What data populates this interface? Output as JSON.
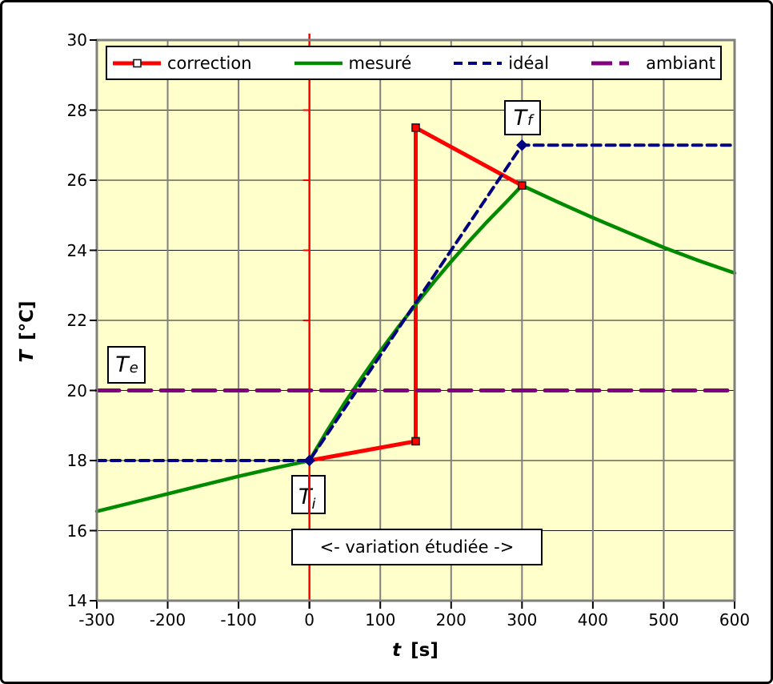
{
  "chart_data": {
    "type": "line",
    "title": "",
    "xlabel_var": "t",
    "xlabel_unit": "[s]",
    "ylabel_var": "T",
    "ylabel_unit": "[°C]",
    "xlim": [
      -300,
      600
    ],
    "ylim": [
      14,
      30
    ],
    "x_ticks": [
      -300,
      -200,
      -100,
      0,
      100,
      200,
      300,
      400,
      500,
      600
    ],
    "y_ticks": [
      14,
      16,
      18,
      20,
      22,
      24,
      26,
      28,
      30
    ],
    "grid": "on",
    "plot_background": "#FFFFCC",
    "h_grid_color": "#1a1a1a",
    "v_grid_color": "#808080",
    "plot_border_color": "#7F7F7F",
    "axis_line": {
      "at_x": 0,
      "color": "#FF0000"
    },
    "legend_position": "top",
    "series": [
      {
        "name": "correction",
        "color": "#FF0000",
        "dash": "",
        "width": 5,
        "marker": "square",
        "marker_fill": "#FF0000",
        "marker_stroke": "#1a1a1a",
        "legend_marker_fill": "#FFFFFF",
        "points": [
          [
            0,
            18.0
          ],
          [
            150,
            18.55
          ],
          [
            150,
            27.5
          ],
          [
            300,
            25.85
          ]
        ],
        "marker_points": [
          [
            150,
            18.55
          ],
          [
            150,
            27.5
          ],
          [
            300,
            25.85
          ]
        ]
      },
      {
        "name": "mesuré",
        "color": "#008A00",
        "dash": "",
        "width": 4.5,
        "marker": "",
        "points": [
          [
            -300,
            16.55
          ],
          [
            -250,
            16.8
          ],
          [
            -200,
            17.05
          ],
          [
            -150,
            17.3
          ],
          [
            -100,
            17.55
          ],
          [
            -50,
            17.78
          ],
          [
            0,
            18.0
          ],
          [
            25,
            18.85
          ],
          [
            50,
            19.65
          ],
          [
            75,
            20.4
          ],
          [
            100,
            21.12
          ],
          [
            125,
            21.8
          ],
          [
            150,
            22.45
          ],
          [
            175,
            23.08
          ],
          [
            200,
            23.68
          ],
          [
            225,
            24.25
          ],
          [
            250,
            24.8
          ],
          [
            275,
            25.32
          ],
          [
            300,
            25.85
          ],
          [
            350,
            25.38
          ],
          [
            400,
            24.93
          ],
          [
            450,
            24.5
          ],
          [
            500,
            24.08
          ],
          [
            550,
            23.7
          ],
          [
            600,
            23.35
          ]
        ],
        "marker_points": []
      },
      {
        "name": "idéal",
        "color": "#000080",
        "dash": "11 7",
        "width": 4,
        "marker": "diamond",
        "marker_fill": "#000080",
        "marker_stroke": "#000080",
        "points": [
          [
            -300,
            18.0
          ],
          [
            0,
            18.0
          ],
          [
            300,
            27.0
          ],
          [
            600,
            27.0
          ]
        ],
        "marker_points": [
          [
            0,
            18.0
          ],
          [
            300,
            27.0
          ]
        ]
      },
      {
        "name": "ambiant",
        "color": "#800080",
        "dash": "28 12",
        "width": 5,
        "marker": "",
        "points": [
          [
            -300,
            20.0
          ],
          [
            600,
            20.0
          ]
        ],
        "marker_points": []
      }
    ],
    "annotations": {
      "tf": {
        "main": "T",
        "sub": "f"
      },
      "te": {
        "main": "T",
        "sub": "e"
      },
      "ti": {
        "main": "T",
        "sub": "i"
      },
      "variation": {
        "text": "<- variation étudiée ->"
      }
    }
  }
}
